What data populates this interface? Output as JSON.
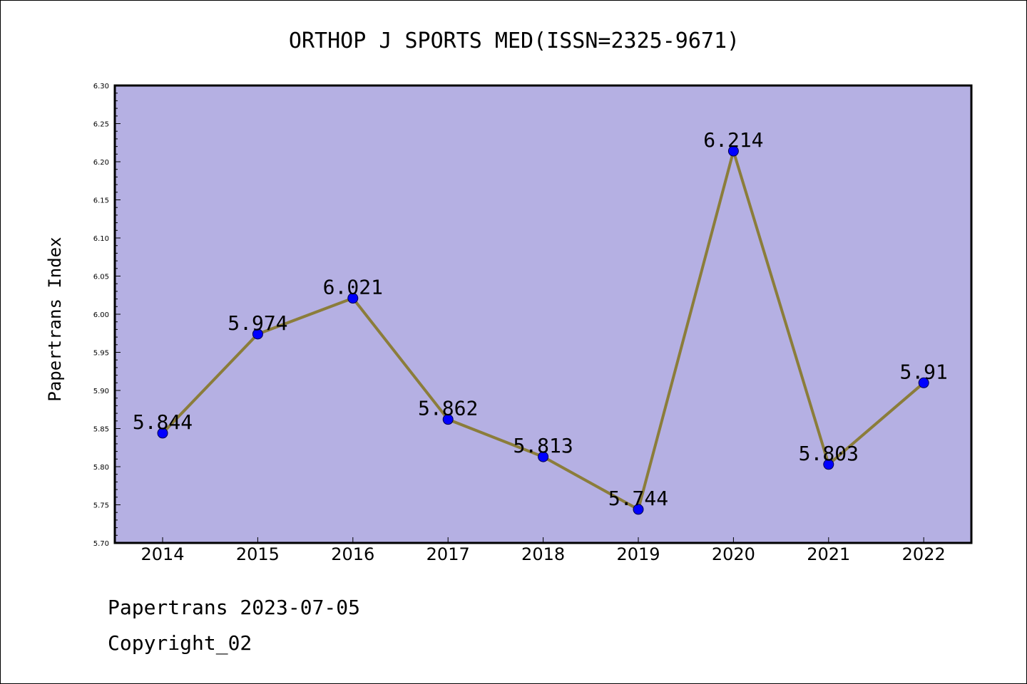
{
  "chart_data": {
    "type": "line",
    "title": "ORTHOP J SPORTS MED(ISSN=2325-9671)",
    "xlabel": "",
    "ylabel": "Papertrans Index",
    "categories": [
      "2014",
      "2015",
      "2016",
      "2017",
      "2018",
      "2019",
      "2020",
      "2021",
      "2022"
    ],
    "values": [
      5.844,
      5.974,
      6.021,
      5.862,
      5.813,
      5.744,
      6.214,
      5.803,
      5.91
    ],
    "data_labels": [
      "5.844",
      "5.974",
      "6.021",
      "5.862",
      "5.813",
      "5.744",
      "6.214",
      "5.803",
      "5.91"
    ],
    "ylim": [
      5.7,
      6.3
    ],
    "y_ticks": [
      "5.70",
      "5.75",
      "5.80",
      "5.85",
      "5.90",
      "5.95",
      "6.00",
      "6.05",
      "6.10",
      "6.15",
      "6.20",
      "6.25",
      "6.30"
    ],
    "grid": false,
    "legend": "none",
    "colors": {
      "plot_background": "#b5b0e3",
      "line": "#8b7d3a",
      "marker": "#0000ff"
    }
  },
  "footer": {
    "line1": "Papertrans 2023-07-05",
    "line2": "Copyright_02"
  }
}
